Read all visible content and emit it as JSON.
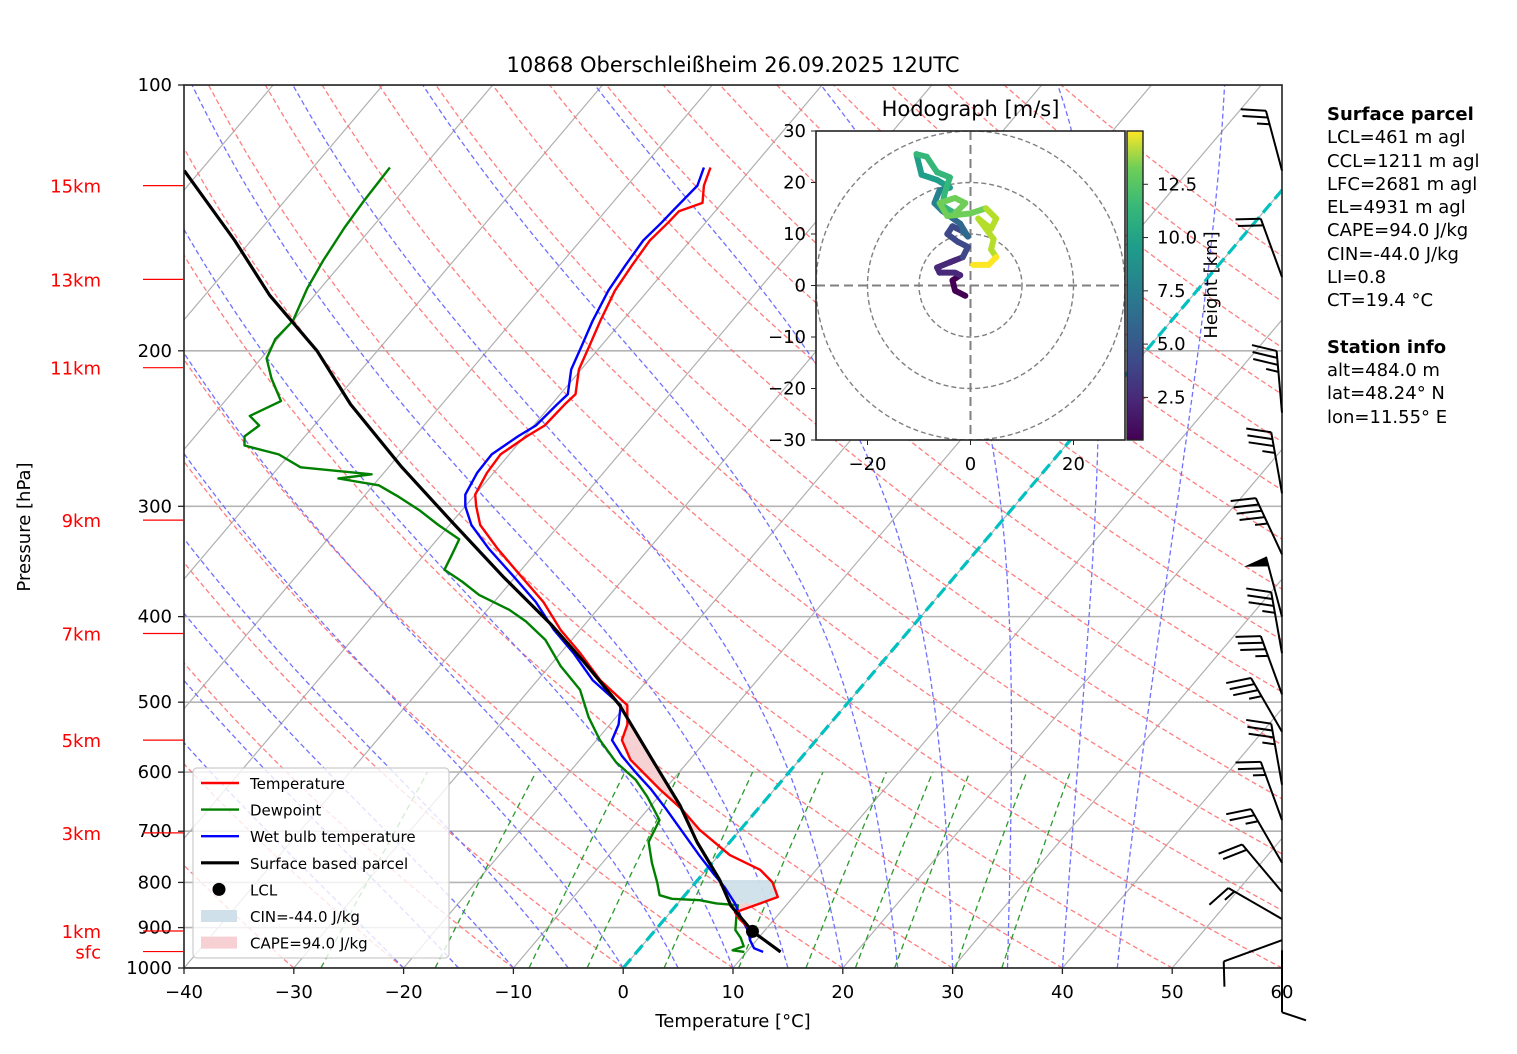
{
  "chart_data": {
    "type": "line",
    "title": "10868 Oberschleißheim 26.09.2025 12UTC",
    "xlabel": "Temperature [°C]",
    "ylabel": "Pressure [hPa]",
    "xlim": [
      -40,
      60
    ],
    "ylim": [
      1000,
      100
    ],
    "xticks": [
      "−40",
      "−30",
      "−20",
      "−10",
      "0",
      "10",
      "20",
      "30",
      "40",
      "50",
      "60"
    ],
    "xtick_values": [
      -40,
      -30,
      -20,
      -10,
      0,
      10,
      20,
      30,
      40,
      50,
      60
    ],
    "yticks": [
      "100",
      "200",
      "300",
      "400",
      "500",
      "600",
      "700",
      "800",
      "900",
      "1000"
    ],
    "ytick_values": [
      100,
      200,
      300,
      400,
      500,
      600,
      700,
      800,
      900,
      1000
    ],
    "y_scale": "log",
    "skew": true,
    "grid": true,
    "height_labels": [
      {
        "label": "15km",
        "p": 130
      },
      {
        "label": "13km",
        "p": 166
      },
      {
        "label": "11km",
        "p": 209
      },
      {
        "label": "9km",
        "p": 311
      },
      {
        "label": "7km",
        "p": 418
      },
      {
        "label": "5km",
        "p": 552
      },
      {
        "label": "3km",
        "p": 703
      },
      {
        "label": "1km",
        "p": 908
      },
      {
        "label": "sfc",
        "p": 958
      }
    ],
    "series": [
      {
        "name": "Temperature",
        "color": "#ff0000",
        "points": [
          [
            959,
            13.1
          ],
          [
            909,
            8.95
          ],
          [
            880,
            6.8
          ],
          [
            865,
            5.9
          ],
          [
            845,
            7.5
          ],
          [
            831,
            8.6
          ],
          [
            800,
            7.0
          ],
          [
            774,
            4.9
          ],
          [
            745,
            1.0
          ],
          [
            698,
            -3.65
          ],
          [
            660,
            -7.0
          ],
          [
            628,
            -10.4
          ],
          [
            581,
            -15.4
          ],
          [
            552,
            -17.7
          ],
          [
            530,
            -18.4
          ],
          [
            504,
            -19.9
          ],
          [
            472,
            -24.3
          ],
          [
            440,
            -28.2
          ],
          [
            414,
            -31.8
          ],
          [
            385,
            -35.5
          ],
          [
            359,
            -39.7
          ],
          [
            335,
            -43.8
          ],
          [
            315,
            -47.2
          ],
          [
            300,
            -49.0
          ],
          [
            291,
            -50.0
          ],
          [
            275,
            -50.6
          ],
          [
            262,
            -50.8
          ],
          [
            250,
            -49.8
          ],
          [
            243,
            -49.0
          ],
          [
            230,
            -48.8
          ],
          [
            224,
            -48.6
          ],
          [
            210,
            -50.2
          ],
          [
            197,
            -51.1
          ],
          [
            185,
            -52.0
          ],
          [
            171,
            -53.0
          ],
          [
            160,
            -53.4
          ],
          [
            150,
            -53.7
          ],
          [
            143,
            -53.4
          ],
          [
            139,
            -53.3
          ],
          [
            136,
            -51.8
          ],
          [
            130,
            -53.0
          ],
          [
            124,
            -53.8
          ]
        ]
      },
      {
        "name": "Dewpoint",
        "color": "#008000",
        "points": [
          [
            959,
            9.8
          ],
          [
            955,
            8.6
          ],
          [
            945,
            9.3
          ],
          [
            925,
            8.4
          ],
          [
            906,
            7.3
          ],
          [
            870,
            6.2
          ],
          [
            849,
            5.6
          ],
          [
            845,
            3.5
          ],
          [
            838,
            1.75
          ],
          [
            835,
            -0.9
          ],
          [
            827,
            -2.3
          ],
          [
            800,
            -3.5
          ],
          [
            760,
            -5.5
          ],
          [
            720,
            -7.4
          ],
          [
            680,
            -8.1
          ],
          [
            640,
            -11.0
          ],
          [
            612,
            -13.4
          ],
          [
            585,
            -16.5
          ],
          [
            552,
            -19.7
          ],
          [
            520,
            -22.5
          ],
          [
            484,
            -25.4
          ],
          [
            455,
            -29.0
          ],
          [
            425,
            -32.4
          ],
          [
            405,
            -35.6
          ],
          [
            393,
            -38.0
          ],
          [
            378,
            -41.9
          ],
          [
            365,
            -44.5
          ],
          [
            354,
            -47.0
          ],
          [
            340,
            -47.5
          ],
          [
            327,
            -48.0
          ],
          [
            315,
            -51.0
          ],
          [
            303,
            -53.9
          ],
          [
            292,
            -57.0
          ],
          [
            284,
            -59.5
          ],
          [
            279,
            -63.7
          ],
          [
            276,
            -61.0
          ],
          [
            271,
            -68.0
          ],
          [
            262,
            -71.0
          ],
          [
            256,
            -74.8
          ],
          [
            250,
            -75.5
          ],
          [
            243,
            -75.0
          ],
          [
            237,
            -76.6
          ],
          [
            228,
            -74.9
          ],
          [
            215,
            -77.5
          ],
          [
            204,
            -79.5
          ],
          [
            194,
            -80.2
          ],
          [
            185,
            -80.0
          ],
          [
            170,
            -81.2
          ],
          [
            158,
            -81.9
          ],
          [
            145,
            -82.5
          ],
          [
            135,
            -82.8
          ],
          [
            124,
            -83.0
          ]
        ]
      },
      {
        "name": "Wet bulb temperature",
        "color": "#0000ff",
        "points": [
          [
            959,
            11.5
          ],
          [
            950,
            10.4
          ],
          [
            930,
            9.4
          ],
          [
            909,
            8.6
          ],
          [
            880,
            7.0
          ],
          [
            845,
            5.2
          ],
          [
            810,
            3.0
          ],
          [
            780,
            0.8
          ],
          [
            745,
            -1.8
          ],
          [
            700,
            -5.2
          ],
          [
            660,
            -8.4
          ],
          [
            628,
            -11.2
          ],
          [
            600,
            -14.0
          ],
          [
            575,
            -16.5
          ],
          [
            552,
            -18.6
          ],
          [
            530,
            -19.2
          ],
          [
            504,
            -20.5
          ],
          [
            472,
            -25.0
          ],
          [
            440,
            -28.8
          ],
          [
            414,
            -32.4
          ],
          [
            385,
            -36.2
          ],
          [
            359,
            -40.4
          ],
          [
            335,
            -44.6
          ],
          [
            315,
            -48.0
          ],
          [
            300,
            -50.0
          ],
          [
            291,
            -50.9
          ],
          [
            275,
            -51.5
          ],
          [
            262,
            -51.6
          ],
          [
            250,
            -50.6
          ],
          [
            243,
            -49.8
          ],
          [
            230,
            -49.5
          ],
          [
            224,
            -49.3
          ],
          [
            210,
            -50.9
          ],
          [
            197,
            -51.8
          ],
          [
            185,
            -52.7
          ],
          [
            171,
            -53.6
          ],
          [
            160,
            -54.0
          ],
          [
            150,
            -54.3
          ],
          [
            143,
            -54.0
          ],
          [
            139,
            -53.9
          ],
          [
            130,
            -53.6
          ],
          [
            124,
            -54.4
          ]
        ]
      },
      {
        "name": "Surface based parcel",
        "color": "#000000",
        "points": [
          [
            959,
            13.1
          ],
          [
            909,
            8.95
          ],
          [
            850,
            5.0
          ],
          [
            795,
            2.0
          ],
          [
            720,
            -3.0
          ],
          [
            654,
            -7.4
          ],
          [
            580,
            -13.5
          ],
          [
            504,
            -20.6
          ],
          [
            450,
            -27.2
          ],
          [
            408,
            -33.1
          ],
          [
            360,
            -41.2
          ],
          [
            311,
            -50.3
          ],
          [
            270,
            -59.0
          ],
          [
            230,
            -68.3
          ],
          [
            200,
            -75.5
          ],
          [
            173,
            -84.1
          ],
          [
            150,
            -91.5
          ],
          [
            125,
            -101.5
          ]
        ]
      }
    ],
    "lcl": {
      "label": "LCL",
      "p": 909,
      "T": 8.95
    },
    "cin_label": "CIN=-44.0 J/kg",
    "cape_label": "CAPE=94.0 J/kg",
    "cin_color": "#cfe0ea",
    "cape_color": "#f7d0d3",
    "cin_region": {
      "p_bottom": 845,
      "p_top": 795
    },
    "cape_regions": [
      {
        "p_bottom": 909,
        "p_top": 845
      },
      {
        "p_bottom": 700,
        "p_top": 504
      }
    ],
    "freezing_isotherm_T": 0,
    "legend": {
      "position": "lower-left",
      "entries": [
        {
          "label": "Temperature",
          "kind": "line",
          "color": "#ff0000"
        },
        {
          "label": "Dewpoint",
          "kind": "line",
          "color": "#008000"
        },
        {
          "label": "Wet bulb temperature",
          "kind": "line",
          "color": "#0000ff"
        },
        {
          "label": "Surface based parcel",
          "kind": "line",
          "color": "#000000"
        },
        {
          "label": "LCL",
          "kind": "dot",
          "color": "#000000"
        },
        {
          "label": "CIN=-44.0 J/kg",
          "kind": "patch",
          "color": "#cfe0ea"
        },
        {
          "label": "CAPE=94.0 J/kg",
          "kind": "patch",
          "color": "#f7d0d3"
        }
      ]
    },
    "wind_barbs": [
      {
        "p": 125,
        "speed_kt": 25,
        "dir_deg": 345
      },
      {
        "p": 165,
        "speed_kt": 20,
        "dir_deg": 340
      },
      {
        "p": 235,
        "speed_kt": 35,
        "dir_deg": 355
      },
      {
        "p": 290,
        "speed_kt": 35,
        "dir_deg": 350
      },
      {
        "p": 340,
        "speed_kt": 45,
        "dir_deg": 335
      },
      {
        "p": 400,
        "speed_kt": 50,
        "dir_deg": 345
      },
      {
        "p": 440,
        "speed_kt": 35,
        "dir_deg": 350
      },
      {
        "p": 490,
        "speed_kt": 35,
        "dir_deg": 340
      },
      {
        "p": 540,
        "speed_kt": 35,
        "dir_deg": 330
      },
      {
        "p": 620,
        "speed_kt": 35,
        "dir_deg": 350
      },
      {
        "p": 680,
        "speed_kt": 25,
        "dir_deg": 340
      },
      {
        "p": 760,
        "speed_kt": 25,
        "dir_deg": 330
      },
      {
        "p": 820,
        "speed_kt": 20,
        "dir_deg": 320
      },
      {
        "p": 880,
        "speed_kt": 15,
        "dir_deg": 300
      },
      {
        "p": 930,
        "speed_kt": 10,
        "dir_deg": 250
      },
      {
        "p": 955,
        "speed_kt": 10,
        "dir_deg": 180
      }
    ],
    "hodograph": {
      "title": "Hodograph [m/s]",
      "xlim": [
        -30,
        30
      ],
      "ylim": [
        -30,
        30
      ],
      "xticks": [
        "−20",
        "0",
        "20"
      ],
      "xtick_values": [
        -20,
        0,
        20
      ],
      "yticks": [
        "30",
        "20",
        "10",
        "0",
        "−10",
        "−20",
        "−30"
      ],
      "ytick_values": [
        30,
        20,
        10,
        0,
        -10,
        -20,
        -30
      ],
      "rings": [
        10,
        20,
        30
      ],
      "colorbar_label": "Height [km]",
      "colorbar_ticks": [
        "2.5",
        "5.0",
        "7.5",
        "10.0",
        "12.5"
      ],
      "colorbar_tick_values": [
        2.5,
        5.0,
        7.5,
        10.0,
        12.5
      ],
      "colorbar_range": [
        0.5,
        15.0
      ],
      "points": [
        {
          "h": 0.5,
          "u": -1.0,
          "v": -2.0
        },
        {
          "h": 0.8,
          "u": -3.0,
          "v": -1.0
        },
        {
          "h": 1.1,
          "u": -3.5,
          "v": 1.0
        },
        {
          "h": 1.4,
          "u": -2.0,
          "v": 2.0
        },
        {
          "h": 1.7,
          "u": -3.0,
          "v": 2.5
        },
        {
          "h": 2.0,
          "u": -6.0,
          "v": 2.5
        },
        {
          "h": 2.3,
          "u": -6.5,
          "v": 3.5
        },
        {
          "h": 2.7,
          "u": -4.0,
          "v": 4.5
        },
        {
          "h": 3.0,
          "u": -1.5,
          "v": 5.5
        },
        {
          "h": 3.3,
          "u": -0.5,
          "v": 7.5
        },
        {
          "h": 3.6,
          "u": -2.5,
          "v": 8.5
        },
        {
          "h": 4.0,
          "u": -4.5,
          "v": 10.0
        },
        {
          "h": 4.5,
          "u": -3.5,
          "v": 11.5
        },
        {
          "h": 5.0,
          "u": -1.5,
          "v": 10.5
        },
        {
          "h": 5.5,
          "u": -0.5,
          "v": 9.5
        },
        {
          "h": 6.0,
          "u": -2.0,
          "v": 12.0
        },
        {
          "h": 6.5,
          "u": -5.5,
          "v": 14.5
        },
        {
          "h": 7.0,
          "u": -7.0,
          "v": 16.0
        },
        {
          "h": 7.5,
          "u": -6.0,
          "v": 18.5
        },
        {
          "h": 8.0,
          "u": -4.0,
          "v": 19.0
        },
        {
          "h": 8.5,
          "u": -6.5,
          "v": 20.5
        },
        {
          "h": 9.0,
          "u": -9.5,
          "v": 21.5
        },
        {
          "h": 9.5,
          "u": -10.5,
          "v": 25.5
        },
        {
          "h": 9.8,
          "u": -8.5,
          "v": 25.0
        },
        {
          "h": 10.0,
          "u": -6.5,
          "v": 22.0
        },
        {
          "h": 10.2,
          "u": -4.0,
          "v": 21.0
        },
        {
          "h": 10.5,
          "u": -5.0,
          "v": 18.0
        },
        {
          "h": 10.8,
          "u": -5.5,
          "v": 15.5
        },
        {
          "h": 11.0,
          "u": -3.0,
          "v": 14.0
        },
        {
          "h": 11.3,
          "u": -1.0,
          "v": 16.0
        },
        {
          "h": 11.5,
          "u": -3.0,
          "v": 17.0
        },
        {
          "h": 11.8,
          "u": -6.0,
          "v": 16.0
        },
        {
          "h": 12.0,
          "u": -4.5,
          "v": 13.5
        },
        {
          "h": 12.3,
          "u": 0.0,
          "v": 14.0
        },
        {
          "h": 12.6,
          "u": 3.0,
          "v": 15.0
        },
        {
          "h": 12.9,
          "u": 5.0,
          "v": 13.0
        },
        {
          "h": 13.2,
          "u": 4.0,
          "v": 11.0
        },
        {
          "h": 13.5,
          "u": 1.5,
          "v": 13.0
        },
        {
          "h": 13.8,
          "u": 4.5,
          "v": 9.0
        },
        {
          "h": 14.1,
          "u": 4.0,
          "v": 7.0
        },
        {
          "h": 14.4,
          "u": 5.0,
          "v": 5.5
        },
        {
          "h": 14.7,
          "u": 3.5,
          "v": 4.0
        },
        {
          "h": 15.0,
          "u": 0.5,
          "v": 4.0
        }
      ]
    }
  },
  "surface_parcel": {
    "heading": "Surface parcel",
    "lines": [
      "LCL=461 m agl",
      "CCL=1211 m agl",
      "LFC=2681 m agl",
      "EL=4931 m agl",
      "CAPE=94.0 J/kg",
      "CIN=-44.0 J/kg",
      "LI=0.8",
      "CT=19.4 °C"
    ]
  },
  "station_info": {
    "heading": "Station info",
    "lines": [
      "alt=484.0 m",
      "lat=48.24° N",
      "lon=11.55° E"
    ]
  }
}
